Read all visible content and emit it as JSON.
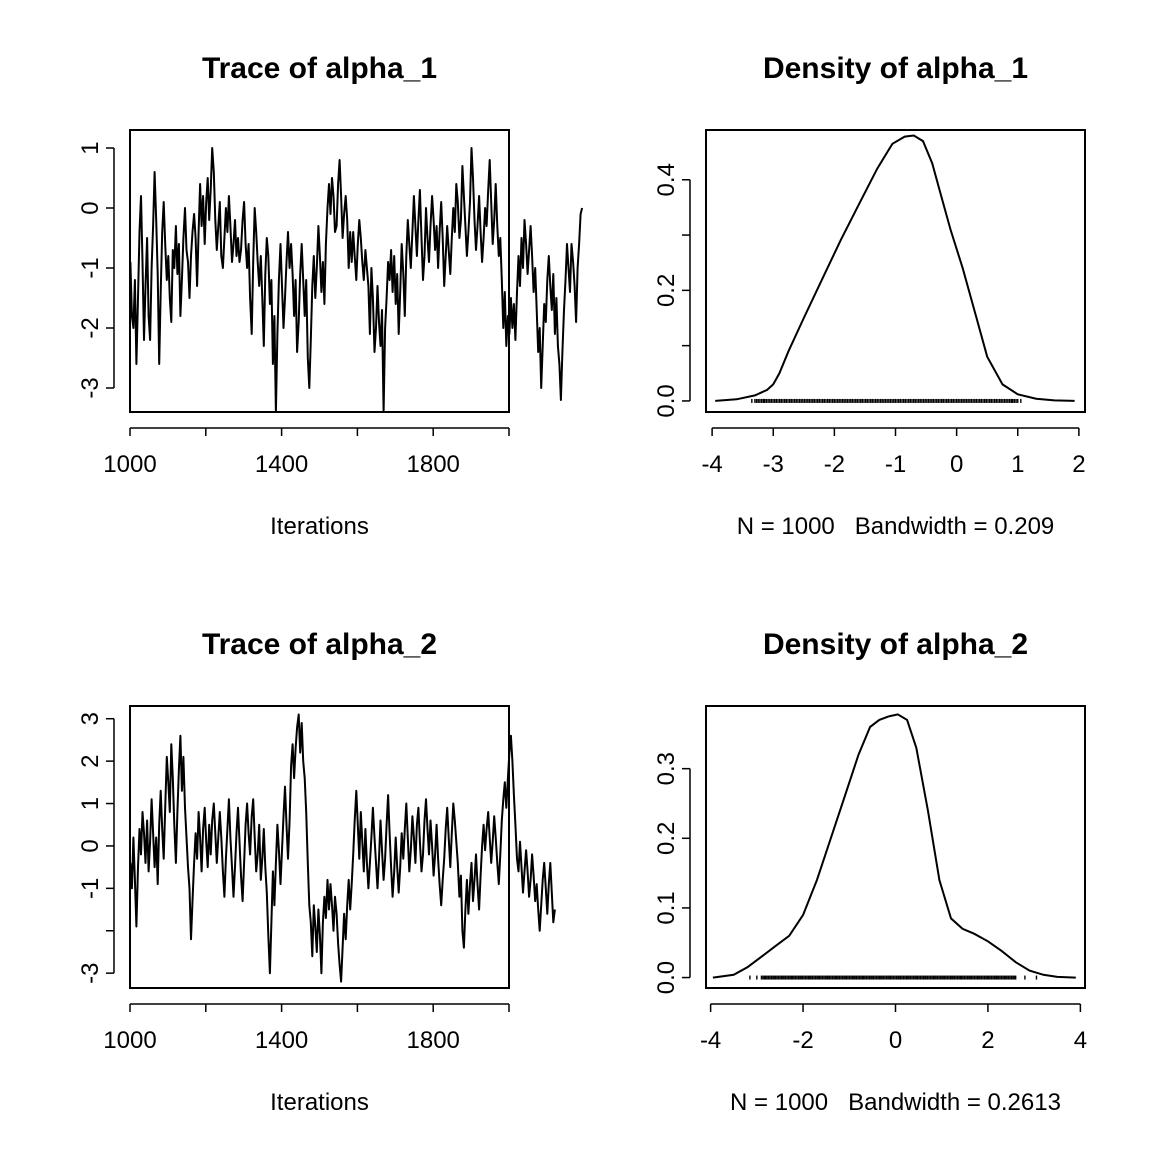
{
  "chart_data": [
    {
      "type": "line",
      "title": "Trace of alpha_1",
      "xlabel": "Iterations",
      "ylabel": "",
      "xlim": [
        1000,
        2000
      ],
      "ylim": [
        -3.4,
        1.3
      ],
      "xticks": [
        1000,
        1200,
        1400,
        1600,
        1800,
        2000
      ],
      "xtick_labels": [
        "1000",
        "",
        "1400",
        "",
        "1800",
        ""
      ],
      "yticks": [
        -3,
        -2,
        -1,
        0,
        1
      ],
      "ytick_labels": [
        "-3",
        "-2",
        "-1",
        "0",
        "1"
      ],
      "series": [
        {
          "x_start": 1001,
          "x_step": 4,
          "values": [
            -0.9,
            -1.8,
            -2.0,
            -1.2,
            -2.6,
            -1.5,
            -0.4,
            0.2,
            -0.9,
            -2.2,
            -1.3,
            -0.5,
            -1.8,
            -2.2,
            -1.0,
            -0.3,
            0.6,
            -0.2,
            -1.1,
            -2.6,
            -1.4,
            -0.4,
            0.1,
            -0.6,
            -1.2,
            -0.8,
            -1.5,
            -1.9,
            -0.7,
            -1.0,
            -0.3,
            -1.1,
            -0.6,
            -1.8,
            -1.2,
            -0.5,
            0.0,
            -0.7,
            -0.9,
            -1.5,
            -0.8,
            -0.4,
            -0.1,
            -0.5,
            -1.3,
            -0.4,
            0.4,
            -0.3,
            0.2,
            -0.6,
            0.1,
            0.5,
            -0.2,
            0.3,
            1.0,
            0.6,
            -0.2,
            -0.7,
            -0.3,
            0.1,
            -0.8,
            -1.0,
            -0.5,
            0.0,
            -0.4,
            0.2,
            -0.3,
            -0.9,
            -0.6,
            -0.2,
            -0.8,
            -0.5,
            -0.9,
            -0.7,
            -0.2,
            0.1,
            -0.6,
            -1.0,
            -0.6,
            -1.5,
            -2.1,
            -0.9,
            0.0,
            -0.4,
            -0.9,
            -1.3,
            -0.8,
            -1.5,
            -2.3,
            -1.1,
            -0.5,
            -0.8,
            -1.6,
            -1.2,
            -2.6,
            -1.8,
            -3.4,
            -2.1,
            -1.2,
            -0.6,
            -1.3,
            -2.0,
            -1.5,
            -0.9,
            -0.4,
            -1.0,
            -0.6,
            -1.1,
            -1.8,
            -1.2,
            -2.4,
            -1.9,
            -1.1,
            -0.6,
            -1.2,
            -1.8,
            -1.2,
            -2.5,
            -3.0,
            -2.2,
            -1.3,
            -0.8,
            -1.5,
            -1.0,
            -0.3,
            -0.8,
            -1.4,
            -0.9,
            -1.6,
            -0.6,
            0.0,
            0.4,
            -0.1,
            0.5,
            0.2,
            -0.4,
            -0.3,
            0.4,
            0.8,
            0.2,
            -0.5,
            -0.1,
            0.2,
            -0.2,
            -1.0,
            -0.4,
            -0.9,
            -0.4,
            -0.8,
            -1.2,
            -0.6,
            -0.2,
            -0.5,
            -0.9,
            -1.2,
            -0.7,
            -1.0,
            -1.3,
            -2.1,
            -1.0,
            -1.5,
            -2.4,
            -2.0,
            -1.3,
            -1.9,
            -2.3,
            -1.7,
            -3.4,
            -2.0,
            -1.5,
            -0.9,
            -1.2,
            -0.7,
            -1.4,
            -0.8,
            -1.6,
            -1.1,
            -2.1,
            -1.4,
            -0.6,
            -1.1,
            -1.8,
            -0.8,
            -0.2,
            -0.6,
            -1.0,
            -0.4,
            0.2,
            -0.3,
            -0.8,
            -0.2,
            0.3,
            -0.5,
            -1.2,
            -0.8,
            0.0,
            -0.5,
            -0.9,
            -0.3,
            0.2,
            -0.2,
            -0.7,
            -0.3,
            -1.0,
            -0.4,
            0.1,
            -0.5,
            -1.3,
            -0.8,
            -0.3,
            -0.7,
            -1.1,
            -0.5,
            0.0,
            -0.4,
            0.4,
            0.1,
            -0.5,
            -0.2,
            0.7,
            0.2,
            -0.3,
            -0.8,
            -0.4,
            0.1,
            1.0,
            0.5,
            -0.2,
            -0.7,
            -0.3,
            0.2,
            -0.4,
            -0.9,
            -0.5,
            0.0,
            -0.3,
            0.3,
            0.8,
            0.1,
            -0.6,
            -0.2,
            0.4,
            -0.3,
            -0.8,
            -0.5,
            -1.2,
            -2.0,
            -1.4,
            -2.3,
            -1.8,
            -2.1,
            -1.5,
            -2.0,
            -1.6,
            -2.2,
            -1.4,
            -0.8,
            -1.3,
            -0.5,
            -1.0,
            -0.2,
            -0.6,
            -1.1,
            -0.7,
            -0.3,
            -0.8,
            -1.4,
            -1.0,
            -1.7,
            -2.4,
            -2.0,
            -3.0,
            -2.3,
            -1.6,
            -1.9,
            -1.2,
            -0.8,
            -1.3,
            -1.7,
            -1.1,
            -2.1,
            -1.5,
            -2.3,
            -2.6,
            -3.2,
            -2.4,
            -1.7,
            -1.2,
            -0.6,
            -1.0,
            -1.4,
            -0.6,
            -0.9,
            -1.3,
            -1.9,
            -1.0,
            -0.6,
            -0.1,
            0.0
          ]
        }
      ]
    },
    {
      "type": "area",
      "title": "Density of alpha_1",
      "xlabel": "N = 1000   Bandwidth = 0.209",
      "ylabel": "",
      "xlim": [
        -4.1,
        2.1
      ],
      "ylim": [
        -0.02,
        0.49
      ],
      "xticks": [
        -4,
        -3,
        -2,
        -1,
        0,
        1,
        2
      ],
      "xtick_labels": [
        "-4",
        "-3",
        "-2",
        "-1",
        "0",
        "1",
        "2"
      ],
      "yticks": [
        0.0,
        0.1,
        0.2,
        0.3,
        0.4
      ],
      "ytick_labels": [
        "0.0",
        "",
        "0.2",
        "",
        "0.4"
      ],
      "density": {
        "x": [
          -3.95,
          -3.6,
          -3.3,
          -3.1,
          -3.0,
          -2.9,
          -2.75,
          -2.5,
          -2.2,
          -1.9,
          -1.6,
          -1.3,
          -1.05,
          -0.85,
          -0.7,
          -0.55,
          -0.4,
          -0.25,
          -0.1,
          0.1,
          0.3,
          0.5,
          0.75,
          1.0,
          1.3,
          1.6,
          1.93
        ],
        "y": [
          0.0,
          0.003,
          0.01,
          0.02,
          0.03,
          0.05,
          0.09,
          0.15,
          0.22,
          0.29,
          0.355,
          0.42,
          0.465,
          0.478,
          0.48,
          0.47,
          0.43,
          0.37,
          0.31,
          0.24,
          0.16,
          0.08,
          0.03,
          0.012,
          0.004,
          0.001,
          0.0
        ]
      },
      "rug": {
        "from": -3.3,
        "to": 1.0,
        "count": 160,
        "extras": [
          -3.35,
          -3.15,
          0.9,
          1.05
        ]
      }
    },
    {
      "type": "line",
      "title": "Trace of alpha_2",
      "xlabel": "Iterations",
      "ylabel": "",
      "xlim": [
        1000,
        2000
      ],
      "ylim": [
        -3.35,
        3.3
      ],
      "xticks": [
        1000,
        1200,
        1400,
        1600,
        1800,
        2000
      ],
      "xtick_labels": [
        "1000",
        "",
        "1400",
        "",
        "1800",
        ""
      ],
      "yticks": [
        -3,
        -2,
        -1,
        0,
        1,
        2,
        3
      ],
      "ytick_labels": [
        "-3",
        "",
        "-1",
        "0",
        "1",
        "2",
        "3"
      ],
      "series": [
        {
          "x_start": 1001,
          "x_step": 4,
          "values": [
            -0.4,
            -1.0,
            0.2,
            -0.8,
            -1.9,
            -0.5,
            0.4,
            -0.2,
            0.8,
            0.3,
            -0.4,
            0.6,
            -0.6,
            0.1,
            1.1,
            0.3,
            -0.5,
            0.2,
            -0.9,
            0.5,
            1.3,
            0.4,
            -0.3,
            0.9,
            2.1,
            1.5,
            0.8,
            2.4,
            1.6,
            0.5,
            -0.4,
            0.8,
            1.8,
            2.6,
            1.3,
            2.1,
            0.9,
            0.2,
            -0.5,
            -1.0,
            -2.2,
            -1.3,
            -0.4,
            0.3,
            -0.3,
            0.8,
            0.2,
            -0.6,
            0.4,
            0.9,
            0.1,
            -0.5,
            0.5,
            -0.2,
            0.6,
            1.0,
            0.3,
            -0.4,
            0.2,
            0.8,
            0.2,
            -0.6,
            -1.2,
            -0.3,
            0.4,
            1.1,
            0.2,
            -0.5,
            -1.2,
            -0.5,
            0.3,
            0.9,
            0.1,
            -0.7,
            -1.3,
            -0.4,
            0.5,
            1.0,
            0.3,
            -0.2,
            0.7,
            1.1,
            0.2,
            -0.6,
            -0.2,
            0.5,
            -0.8,
            -0.3,
            0.4,
            -0.5,
            -1.1,
            -2.1,
            -3.0,
            -1.8,
            -0.6,
            -1.4,
            -0.4,
            0.5,
            -0.1,
            -0.9,
            -0.1,
            0.7,
            1.4,
            0.5,
            -0.3,
            0.6,
            1.9,
            2.4,
            1.6,
            2.3,
            2.8,
            3.1,
            2.2,
            2.9,
            2.0,
            1.6,
            0.8,
            -0.4,
            -1.4,
            -1.8,
            -2.6,
            -1.4,
            -1.9,
            -2.5,
            -1.5,
            -2.1,
            -3.0,
            -1.8,
            -1.2,
            -1.7,
            -0.8,
            -1.5,
            -0.9,
            -1.4,
            -2.0,
            -1.2,
            -1.6,
            -2.3,
            -2.8,
            -3.2,
            -2.4,
            -1.6,
            -2.2,
            -1.4,
            -0.8,
            -1.5,
            -0.9,
            -0.2,
            0.6,
            1.3,
            0.5,
            -0.3,
            0.8,
            0.1,
            -0.6,
            0.4,
            -0.4,
            -1.0,
            -0.4,
            0.2,
            0.9,
            0.2,
            -0.4,
            -1.0,
            -0.3,
            0.6,
            -0.1,
            -0.8,
            -0.3,
            0.5,
            1.2,
            0.3,
            -0.5,
            -1.2,
            -0.6,
            0.2,
            -0.5,
            -1.1,
            -0.5,
            0.3,
            -0.3,
            0.4,
            1.0,
            0.2,
            -0.6,
            -0.1,
            0.7,
            0.2,
            -0.4,
            0.5,
            0.9,
            0.1,
            -0.6,
            -0.2,
            0.6,
            1.1,
            0.4,
            -0.2,
            0.6,
            0.0,
            -0.7,
            -0.2,
            0.5,
            -0.3,
            -0.9,
            -1.4,
            -0.8,
            -0.3,
            0.4,
            0.9,
            0.2,
            -0.5,
            0.3,
            1.0,
            0.6,
            0.1,
            -0.4,
            -1.2,
            -0.7,
            -2.0,
            -2.4,
            -1.5,
            -0.8,
            -1.6,
            -0.9,
            -0.4,
            -1.3,
            -0.8,
            -0.2,
            -0.9,
            -1.5,
            -0.7,
            0.0,
            0.5,
            -0.1,
            0.4,
            0.8,
            0.2,
            -0.4,
            0.1,
            0.7,
            0.2,
            -0.4,
            -0.9,
            -0.2,
            0.6,
            1.1,
            1.5,
            0.9,
            1.6,
            2.2,
            2.6,
            2.0,
            1.2,
            0.5,
            -0.3,
            -0.6,
            0.1,
            -0.5,
            -1.1,
            -0.6,
            -0.1,
            -0.6,
            -1.2,
            -0.8,
            -0.2,
            -0.7,
            -1.3,
            -0.9,
            -1.5,
            -2.0,
            -1.4,
            -0.8,
            -0.4,
            -1.0,
            -1.6,
            -0.9,
            -0.4,
            -1.1,
            -1.8,
            -1.5
          ]
        }
      ]
    },
    {
      "type": "area",
      "title": "Density of alpha_2",
      "xlabel": "N = 1000   Bandwidth = 0.2613",
      "ylabel": "",
      "xlim": [
        -4.1,
        4.1
      ],
      "ylim": [
        -0.015,
        0.39
      ],
      "xticks": [
        -4,
        -2,
        0,
        2,
        4
      ],
      "xtick_labels": [
        "-4",
        "-2",
        "0",
        "2",
        "4"
      ],
      "yticks": [
        0.0,
        0.1,
        0.2,
        0.3
      ],
      "ytick_labels": [
        "0.0",
        "0.1",
        "0.2",
        "0.3"
      ],
      "density": {
        "x": [
          -3.95,
          -3.5,
          -3.2,
          -2.9,
          -2.6,
          -2.3,
          -2.0,
          -1.7,
          -1.4,
          -1.1,
          -0.8,
          -0.55,
          -0.35,
          -0.15,
          0.05,
          0.25,
          0.45,
          0.7,
          0.95,
          1.2,
          1.45,
          1.7,
          2.0,
          2.3,
          2.6,
          2.9,
          3.2,
          3.5,
          3.9
        ],
        "y": [
          0.0,
          0.004,
          0.015,
          0.03,
          0.045,
          0.06,
          0.09,
          0.14,
          0.2,
          0.26,
          0.32,
          0.36,
          0.37,
          0.375,
          0.378,
          0.37,
          0.33,
          0.24,
          0.14,
          0.085,
          0.07,
          0.063,
          0.052,
          0.038,
          0.022,
          0.01,
          0.004,
          0.001,
          0.0
        ]
      },
      "rug": {
        "from": -2.9,
        "to": 2.6,
        "count": 180,
        "extras": [
          -3.15,
          -3.0,
          2.8,
          3.05
        ]
      }
    }
  ]
}
